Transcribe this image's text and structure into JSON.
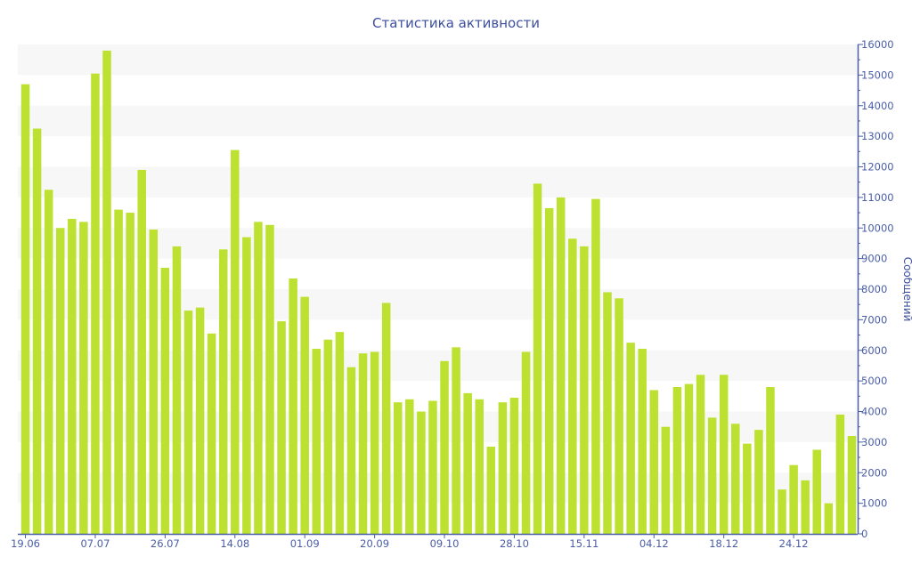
{
  "chart_data": {
    "type": "bar",
    "title": "Статистика активности",
    "ylabel": "Сообщений",
    "xlabel": "",
    "ylim": [
      0,
      16000
    ],
    "yticks": [
      0,
      1000,
      2000,
      3000,
      4000,
      5000,
      6000,
      7000,
      8000,
      9000,
      10000,
      11000,
      12000,
      13000,
      14000,
      15000,
      16000
    ],
    "y_axis_side": "right",
    "grid": "alternating horizontal bands",
    "legend": "none",
    "colors": {
      "bar": "#bde130",
      "axis": "#4a5ea8",
      "title": "#3c4fa0",
      "band": "#f7f7f7"
    },
    "categories": [
      "19.06",
      "",
      "",
      "",
      "",
      "",
      "07.07",
      "",
      "",
      "",
      "",
      "",
      "26.07",
      "",
      "",
      "",
      "",
      "",
      "14.08",
      "",
      "",
      "",
      "",
      "",
      "01.09",
      "",
      "",
      "",
      "",
      "",
      "20.09",
      "",
      "",
      "",
      "",
      "",
      "09.10",
      "",
      "",
      "",
      "",
      "",
      "28.10",
      "",
      "",
      "",
      "",
      "",
      "15.11",
      "",
      "",
      "",
      "",
      "",
      "04.12",
      "",
      "",
      "",
      "",
      "",
      "18.12",
      "",
      "",
      "",
      "",
      "",
      "24.12",
      "",
      "",
      "",
      "",
      ""
    ],
    "values": [
      14700,
      13250,
      11250,
      10000,
      10300,
      10200,
      15050,
      15800,
      10600,
      10500,
      11900,
      9950,
      8700,
      9400,
      7300,
      7400,
      6550,
      9300,
      12550,
      9700,
      10200,
      10100,
      6950,
      8350,
      7750,
      6050,
      6350,
      6600,
      5450,
      5900,
      5950,
      7550,
      4300,
      4400,
      4000,
      4350,
      5650,
      6100,
      4600,
      4400,
      2850,
      4300,
      4450,
      5950,
      11450,
      10650,
      11000,
      9650,
      9400,
      10950,
      7900,
      7700,
      6250,
      6050,
      4700,
      3500,
      4800,
      4900,
      5200,
      3800,
      5200,
      3600,
      2950,
      3400,
      4800,
      1450,
      2250,
      1750,
      2750,
      1000,
      3900,
      3200
    ]
  }
}
